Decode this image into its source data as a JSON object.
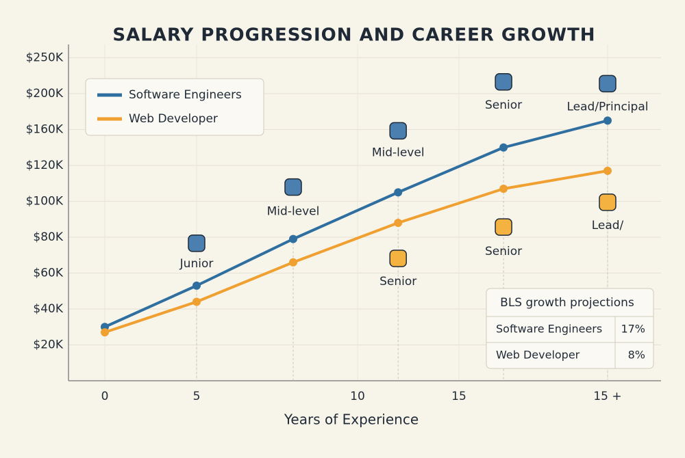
{
  "chart_data": {
    "type": "line",
    "title": "SALARY PROGRESSION AND CAREER GROWTH",
    "x_label": "Years of Experience",
    "x": [
      0,
      5,
      8,
      12,
      16.5,
      20
    ],
    "xlim": [
      -2,
      22
    ],
    "xticks": [
      0,
      5,
      10,
      15,
      {
        "value": 20,
        "label": "15 +"
      }
    ],
    "ylim": [
      0,
      250000
    ],
    "yticks": [
      {
        "value": 20000,
        "label": "$20K"
      },
      {
        "value": 40000,
        "label": "$40K"
      },
      {
        "value": 60000,
        "label": "$60K"
      },
      {
        "value": 80000,
        "label": "$80K"
      },
      {
        "value": 100000,
        "label": "$100K"
      },
      {
        "value": 120000,
        "label": "$120K"
      },
      {
        "value": 160000,
        "label": "$160K"
      },
      {
        "value": 200000,
        "label": "$200K"
      },
      {
        "value": 250000,
        "label": "$250K"
      }
    ],
    "grid": true,
    "legend": "upper left",
    "series": [
      {
        "name": "Software Engineers",
        "color": "#2f6fa0",
        "values": [
          30000,
          53000,
          79000,
          105000,
          140000,
          170000
        ]
      },
      {
        "name": "Web Developer",
        "color": "#f0a030",
        "values": [
          27000,
          44000,
          66000,
          88000,
          107000,
          117000
        ]
      }
    ],
    "annotations": [
      "Junior",
      "Mid-level",
      "Mid-level",
      "Senior",
      "Lead/Principal",
      "Senior",
      "Senior",
      "Lead/"
    ],
    "table": {
      "title": "BLS growth projections",
      "rows": [
        [
          "Software Engineers",
          "17%"
        ],
        [
          "Web Developer",
          "8%"
        ]
      ]
    }
  }
}
